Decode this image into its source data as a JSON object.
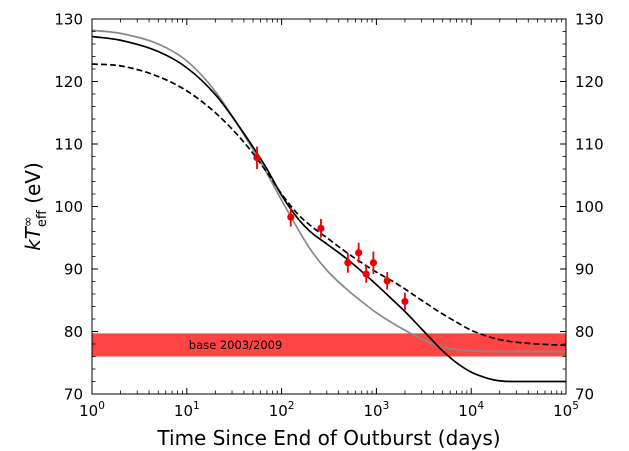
{
  "chart_data": {
    "type": "line",
    "xlabel": "Time Since End of Outburst (days)",
    "ylabel": {
      "base": "kT",
      "sup": "∞",
      "sub": "eff",
      "unit": " (eV)"
    },
    "xscale": "log",
    "xlim": [
      1,
      100000
    ],
    "ylim": [
      70,
      130
    ],
    "x_tick_labels": [
      {
        "value": 1,
        "base": "10",
        "exp": "0"
      },
      {
        "value": 10,
        "base": "10",
        "exp": "1"
      },
      {
        "value": 100,
        "base": "10",
        "exp": "2"
      },
      {
        "value": 1000,
        "base": "10",
        "exp": "3"
      },
      {
        "value": 10000,
        "base": "10",
        "exp": "4"
      },
      {
        "value": 100000,
        "base": "10",
        "exp": "5"
      }
    ],
    "y_ticks": [
      70,
      80,
      90,
      100,
      110,
      120,
      130
    ],
    "band": {
      "label": "base 2003/2009",
      "y_low": 76.0,
      "y_high": 79.7,
      "color": "#ff4444"
    },
    "points": {
      "color": "#ee0000",
      "x": [
        55,
        125,
        260,
        500,
        650,
        780,
        930,
        1300,
        2000
      ],
      "y": [
        107.8,
        98.3,
        96.5,
        91.0,
        92.6,
        89.2,
        91.0,
        88.1,
        84.8
      ],
      "yerr": [
        1.8,
        1.5,
        1.5,
        1.6,
        1.6,
        1.4,
        1.8,
        1.4,
        1.4
      ]
    },
    "series": [
      {
        "style": "gray",
        "color": "#888888",
        "x": [
          1,
          2,
          5,
          10,
          20,
          40,
          70,
          100,
          150,
          200,
          300,
          500,
          700,
          1000,
          1500,
          2000,
          3000,
          5000,
          8000,
          10000,
          20000,
          100000
        ],
        "y": [
          128.2,
          127.7,
          126.0,
          123.3,
          118.4,
          111.5,
          105.3,
          101.0,
          96.3,
          93.2,
          89.8,
          86.6,
          84.8,
          83.0,
          81.3,
          80.2,
          78.8,
          77.5,
          77.0,
          76.9,
          76.8,
          76.8
        ]
      },
      {
        "style": "black",
        "color": "#000000",
        "x": [
          1,
          2,
          5,
          10,
          20,
          40,
          70,
          100,
          150,
          200,
          300,
          500,
          700,
          1000,
          1500,
          2000,
          3000,
          4000,
          5000,
          7000,
          10000,
          15000,
          20000,
          30000,
          50000,
          100000
        ],
        "y": [
          127.2,
          126.6,
          124.8,
          122.2,
          117.9,
          111.7,
          106.0,
          101.8,
          98.0,
          96.0,
          94.0,
          91.5,
          89.6,
          87.5,
          85.0,
          83.2,
          80.4,
          78.4,
          76.9,
          75.0,
          73.5,
          72.5,
          72.1,
          72.0,
          72.0,
          72.0
        ]
      },
      {
        "style": "dashed",
        "color": "#000000",
        "x": [
          1,
          2,
          5,
          10,
          20,
          40,
          70,
          100,
          150,
          200,
          300,
          500,
          700,
          1000,
          1500,
          2000,
          3000,
          5000,
          7000,
          10000,
          20000,
          50000,
          100000
        ],
        "y": [
          122.8,
          122.5,
          120.8,
          118.5,
          115.0,
          110.3,
          105.5,
          102.0,
          98.7,
          97.0,
          95.0,
          92.5,
          91.0,
          89.5,
          88.0,
          86.8,
          85.0,
          82.8,
          81.5,
          80.2,
          78.7,
          78.0,
          77.8
        ]
      }
    ]
  }
}
